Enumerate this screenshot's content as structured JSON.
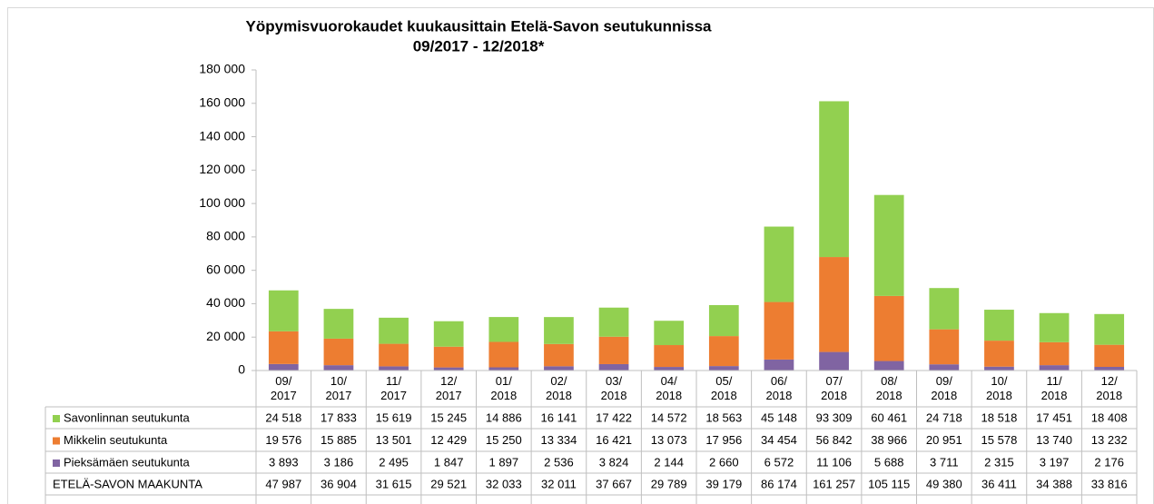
{
  "chart_data": {
    "type": "stacked_bar",
    "title": "Yöpymisvuorokaudet kuukausittain Etelä-Savon seutukunnissa",
    "subtitle": "09/2017 - 12/2018*",
    "categories": [
      "09/ 2017",
      "10/ 2017",
      "11/ 2017",
      "12/ 2017",
      "01/ 2018",
      "02/ 2018",
      "03/ 2018",
      "04/ 2018",
      "05/ 2018",
      "06/ 2018",
      "07/ 2018",
      "08/ 2018",
      "09/ 2018",
      "10/ 2018",
      "11/ 2018",
      "12/ 2018"
    ],
    "series": [
      {
        "name": "Savonlinnan seutukunta",
        "color": "#92d050",
        "values": [
          24518,
          17833,
          15619,
          15245,
          14886,
          16141,
          17422,
          14572,
          18563,
          45148,
          93309,
          60461,
          24718,
          18518,
          17451,
          18408
        ],
        "value_labels": [
          "24 518",
          "17 833",
          "15 619",
          "15 245",
          "14 886",
          "16 141",
          "17 422",
          "14 572",
          "18 563",
          "45 148",
          "93 309",
          "60 461",
          "24 718",
          "18 518",
          "17 451",
          "18 408"
        ]
      },
      {
        "name": "Mikkelin seutukunta",
        "color": "#ed7d31",
        "values": [
          19576,
          15885,
          13501,
          12429,
          15250,
          13334,
          16421,
          13073,
          17956,
          34454,
          56842,
          38966,
          20951,
          15578,
          13740,
          13232
        ],
        "value_labels": [
          "19 576",
          "15 885",
          "13 501",
          "12 429",
          "15 250",
          "13 334",
          "16 421",
          "13 073",
          "17 956",
          "34 454",
          "56 842",
          "38 966",
          "20 951",
          "15 578",
          "13 740",
          "13 232"
        ]
      },
      {
        "name": "Pieksämäen seutukunta",
        "color": "#8064a2",
        "values": [
          3893,
          3186,
          2495,
          1847,
          1897,
          2536,
          3824,
          2144,
          2660,
          6572,
          11106,
          5688,
          3711,
          2315,
          3197,
          2176
        ],
        "value_labels": [
          "3 893",
          "3 186",
          "2 495",
          "1 847",
          "1 897",
          "2 536",
          "3 824",
          "2 144",
          "2 660",
          "6 572",
          "11 106",
          "5 688",
          "3 711",
          "2 315",
          "3 197",
          "2 176"
        ]
      }
    ],
    "total": {
      "name": "ETELÄ-SAVON MAAKUNTA",
      "values": [
        47987,
        36904,
        31615,
        29521,
        32033,
        32011,
        37667,
        29789,
        39179,
        86174,
        161257,
        105115,
        49380,
        36411,
        34388,
        33816
      ],
      "value_labels": [
        "47 987",
        "36 904",
        "31 615",
        "29 521",
        "32 033",
        "32 011",
        "37 667",
        "29 789",
        "39 179",
        "86 174",
        "161 257",
        "105 115",
        "49 380",
        "36 411",
        "34 388",
        "33 816"
      ]
    },
    "ylim": [
      0,
      180000
    ],
    "yticks": [
      0,
      {
        "value": 20000,
        "label": "20 000"
      },
      {
        "value": 40000,
        "label": "40 000"
      },
      {
        "value": 60000,
        "label": "60 000"
      },
      {
        "value": 80000,
        "label": "80 000"
      },
      {
        "value": 100000,
        "label": "100 000"
      },
      {
        "value": 120000,
        "label": "120 000"
      },
      {
        "value": 140000,
        "label": "140 000"
      },
      {
        "value": 160000,
        "label": "160 000"
      },
      {
        "value": 180000,
        "label": "180 000"
      }
    ],
    "grid": false
  }
}
